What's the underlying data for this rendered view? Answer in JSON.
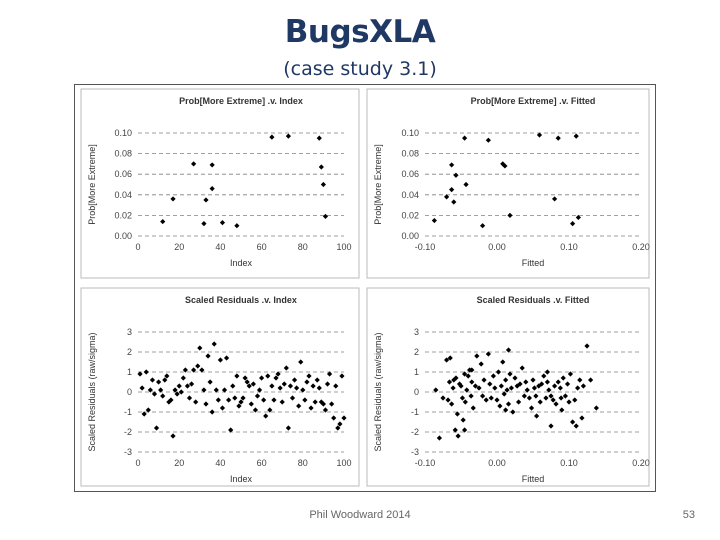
{
  "slide": {
    "title": "BugsXLA",
    "subtitle": "(case study 3.1)",
    "footer": "Phil Woodward 2014",
    "page_number": "53"
  },
  "colors": {
    "title": "#1f3864",
    "points": "#000000",
    "grid": "#808080",
    "frame": "#555555"
  },
  "chart_data": [
    {
      "id": "prob-index",
      "type": "scatter",
      "title": "Prob[More Extreme] .v. Index",
      "xlabel": "Index",
      "ylabel": "Prob[More Extreme]",
      "xlim": [
        0,
        100
      ],
      "ylim": [
        0,
        0.1
      ],
      "xticks": [
        0,
        20,
        40,
        60,
        80,
        100
      ],
      "xtick_labels": [
        "0",
        "20",
        "40",
        "60",
        "80",
        "100"
      ],
      "yticks": [
        0,
        0.02,
        0.04,
        0.06,
        0.08,
        0.1
      ],
      "ytick_labels": [
        "0.00",
        "0.02",
        "0.04",
        "0.06",
        "0.08",
        "0.10"
      ],
      "grid": "horizontal dashed",
      "x": [
        12,
        17,
        27,
        32,
        33,
        36,
        36,
        41,
        48,
        65,
        73,
        88,
        89,
        90,
        91
      ],
      "y": [
        0.014,
        0.036,
        0.07,
        0.012,
        0.035,
        0.046,
        0.069,
        0.013,
        0.01,
        0.096,
        0.097,
        0.095,
        0.067,
        0.05,
        0.019
      ]
    },
    {
      "id": "prob-fitted",
      "type": "scatter",
      "title": "Prob[More Extreme] .v. Fitted",
      "xlabel": "Fitted",
      "ylabel": "Prob[More Extreme]",
      "xlim": [
        -0.1,
        0.2
      ],
      "ylim": [
        0,
        0.1
      ],
      "xticks": [
        -0.1,
        0,
        0.1,
        0.2
      ],
      "xtick_labels": [
        "-0.10",
        "0.00",
        "0.10",
        "0.20"
      ],
      "yticks": [
        0,
        0.02,
        0.04,
        0.06,
        0.08,
        0.1
      ],
      "ytick_labels": [
        "0.00",
        "0.02",
        "0.04",
        "0.06",
        "0.08",
        "0.10"
      ],
      "grid": "horizontal dashed",
      "x": [
        -0.087,
        -0.07,
        -0.063,
        -0.063,
        -0.06,
        -0.057,
        -0.045,
        -0.043,
        -0.02,
        -0.012,
        0.008,
        0.011,
        0.018,
        0.059,
        0.08,
        0.085,
        0.105,
        0.11,
        0.113
      ],
      "y": [
        0.015,
        0.038,
        0.069,
        0.045,
        0.033,
        0.059,
        0.095,
        0.05,
        0.01,
        0.093,
        0.07,
        0.068,
        0.02,
        0.098,
        0.036,
        0.095,
        0.012,
        0.097,
        0.018
      ]
    },
    {
      "id": "resid-index",
      "type": "scatter",
      "title": "Scaled Residuals .v. Index",
      "xlabel": "Index",
      "ylabel": "Scaled Residuals (raw/sigma)",
      "xlim": [
        0,
        100
      ],
      "ylim": [
        -3,
        3
      ],
      "xticks": [
        0,
        20,
        40,
        60,
        80,
        100
      ],
      "xtick_labels": [
        "0",
        "20",
        "40",
        "60",
        "80",
        "100"
      ],
      "yticks": [
        -3,
        -2,
        -1,
        0,
        1,
        2,
        3
      ],
      "ytick_labels": [
        "-3",
        "-2",
        "-1",
        "0",
        "1",
        "2",
        "3"
      ],
      "grid": "horizontal dashed",
      "x": [
        1,
        2,
        3,
        4,
        5,
        6,
        8,
        9,
        10,
        11,
        12,
        13,
        14,
        15,
        16,
        17,
        18,
        19,
        20,
        21,
        22,
        23,
        24,
        25,
        26,
        27,
        28,
        29,
        30,
        31,
        32,
        33,
        34,
        35,
        36,
        37,
        38,
        39,
        40,
        41,
        42,
        43,
        44,
        45,
        46,
        47,
        48,
        49,
        50,
        51,
        52,
        53,
        54,
        55,
        56,
        57,
        58,
        59,
        60,
        61,
        62,
        63,
        64,
        65,
        66,
        67,
        68,
        69,
        70,
        71,
        72,
        73,
        74,
        75,
        76,
        77,
        78,
        79,
        80,
        81,
        82,
        83,
        84,
        85,
        86,
        87,
        88,
        89,
        90,
        91,
        92,
        93,
        94,
        95,
        96,
        97,
        98,
        99,
        100,
        7
      ],
      "y": [
        0.9,
        0.2,
        -1.1,
        1,
        -0.9,
        0.1,
        -0.1,
        -1.8,
        0.5,
        0.1,
        -0.2,
        0.6,
        0.8,
        -0.5,
        -0.4,
        -2.2,
        0.1,
        -0.1,
        0.3,
        0,
        0.7,
        1.1,
        0.3,
        -0.3,
        0.4,
        1.1,
        -0.5,
        1.3,
        2.2,
        1.1,
        0.1,
        -0.6,
        1.8,
        0.5,
        -1,
        2.4,
        0.1,
        -0.4,
        1.6,
        -0.8,
        0.1,
        1.7,
        -0.4,
        -1.9,
        0.3,
        -0.3,
        0.8,
        -0.7,
        -0.5,
        -0.3,
        0.7,
        0.5,
        0.3,
        -0.6,
        0.4,
        -0.9,
        -0.2,
        0.1,
        0.7,
        -0.4,
        -1.2,
        0.8,
        -0.9,
        0.3,
        -0.4,
        0.7,
        0.9,
        0.2,
        -0.5,
        0.4,
        1.2,
        -1.8,
        0.3,
        -0.3,
        0.6,
        0.2,
        -0.7,
        1.5,
        0.1,
        -0.4,
        0.5,
        0.8,
        -0.8,
        0.3,
        -0.5,
        0.6,
        0.2,
        -0.5,
        -0.6,
        -0.9,
        0.4,
        0.9,
        -0.6,
        -1.3,
        0.3,
        -1.8,
        -1.6,
        0.8,
        -1.3,
        0.6
      ]
    },
    {
      "id": "resid-fitted",
      "type": "scatter",
      "title": "Scaled Residuals .v. Fitted",
      "xlabel": "Fitted",
      "ylabel": "Scaled Residuals (raw/sigma)",
      "xlim": [
        -0.1,
        0.2
      ],
      "ylim": [
        -3,
        3
      ],
      "xticks": [
        -0.1,
        0,
        0.1,
        0.2
      ],
      "xtick_labels": [
        "-0.10",
        "0.00",
        "0.10",
        "0.20"
      ],
      "yticks": [
        -3,
        -2,
        -1,
        0,
        1,
        2,
        3
      ],
      "ytick_labels": [
        "-3",
        "-2",
        "-1",
        "0",
        "1",
        "2",
        "3"
      ],
      "grid": "horizontal dashed",
      "x": [
        -0.085,
        -0.08,
        -0.075,
        -0.07,
        -0.068,
        -0.066,
        -0.065,
        -0.063,
        -0.061,
        -0.06,
        -0.058,
        -0.057,
        -0.055,
        -0.054,
        -0.052,
        -0.05,
        -0.048,
        -0.047,
        -0.045,
        -0.044,
        -0.042,
        -0.04,
        -0.038,
        -0.036,
        -0.035,
        -0.033,
        -0.03,
        -0.028,
        -0.025,
        -0.022,
        -0.02,
        -0.018,
        -0.015,
        -0.012,
        -0.01,
        -0.008,
        -0.005,
        -0.003,
        0,
        0.002,
        0.004,
        0.006,
        0.008,
        0.01,
        0.012,
        0.014,
        0.016,
        0.018,
        0.02,
        0.022,
        0.025,
        0.028,
        0.03,
        0.032,
        0.035,
        0.038,
        0.04,
        0.042,
        0.045,
        0.048,
        0.05,
        0.052,
        0.055,
        0.058,
        0.06,
        0.062,
        0.065,
        0.068,
        0.07,
        0.072,
        0.075,
        0.078,
        0.08,
        0.082,
        0.085,
        0.088,
        0.09,
        0.092,
        0.095,
        0.098,
        0.1,
        0.102,
        0.105,
        0.108,
        0.11,
        0.112,
        0.115,
        0.118,
        0.12,
        0.125,
        0.13,
        0.138,
        0.012,
        0.016,
        -0.045,
        0.075,
        0.07,
        -0.035,
        0.054,
        0.089
      ],
      "y": [
        0.1,
        -2.3,
        -0.3,
        1.6,
        -0.4,
        0.5,
        1.7,
        -0.6,
        0.2,
        0.6,
        -1.9,
        0.7,
        -1.1,
        -2.2,
        0.4,
        0.3,
        -0.3,
        -1.4,
        0.9,
        -0.5,
        0.1,
        0.8,
        1.1,
        -0.2,
        0.5,
        -0.8,
        0.3,
        1.8,
        0.2,
        1.4,
        -0.2,
        0.6,
        -0.4,
        1.9,
        0.4,
        -0.3,
        0.8,
        0.2,
        -0.4,
        1,
        -0.7,
        0.3,
        1.5,
        -0.1,
        0.6,
        0.1,
        -0.6,
        0.9,
        0.2,
        -1,
        0.7,
        0.3,
        -0.5,
        0.4,
        1.2,
        -0.2,
        0.5,
        0.1,
        -0.3,
        -0.8,
        0.6,
        0.2,
        -1.2,
        0.3,
        -0.5,
        0.4,
        0.8,
        -0.3,
        1,
        0.1,
        -1.7,
        -0.4,
        0.3,
        -0.6,
        0.5,
        0.2,
        -0.9,
        0.7,
        -0.2,
        0.4,
        -0.5,
        0.9,
        -1.5,
        -0.4,
        -1.7,
        0.2,
        0.6,
        -1.3,
        0.3,
        2.3,
        0.6,
        -0.8,
        -0.9,
        2.1,
        -1.9,
        -0.2,
        0.5,
        1.1,
        -0.2,
        -0.3
      ]
    }
  ]
}
